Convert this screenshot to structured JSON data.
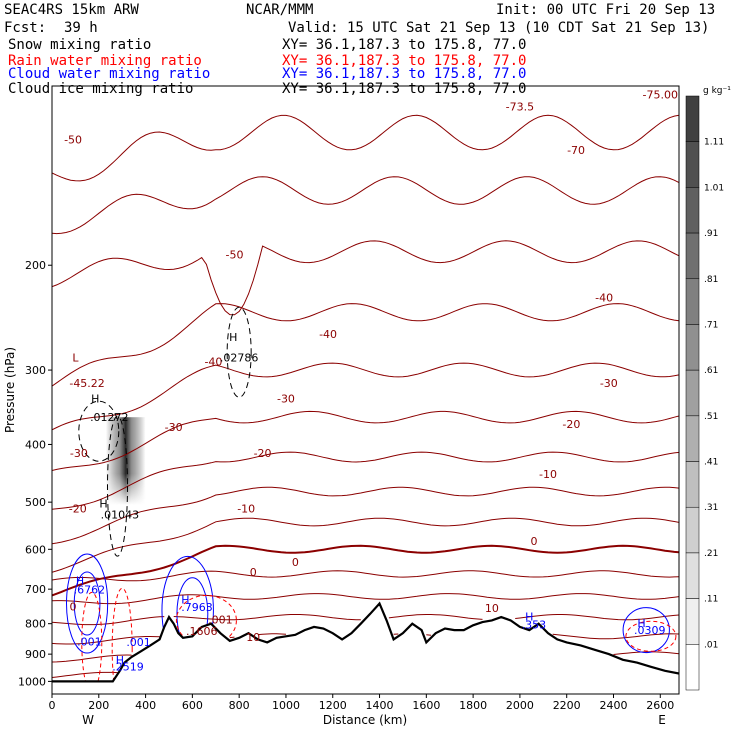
{
  "header": {
    "model": "SEAC4RS 15km ARW",
    "org": "NCAR/MMM",
    "init": "Init: 00 UTC Fri 20 Sep 13",
    "fcst_label": "Fcst:",
    "fcst_value": "39 h",
    "valid": "Valid: 15 UTC Sat 21 Sep 13 (10 CDT Sat 21 Sep 13)"
  },
  "legend": [
    {
      "label": "Snow mixing ratio",
      "xy": "XY=  36.1,187.3 to 175.8, 77.0",
      "color": "#000000"
    },
    {
      "label": "Rain water mixing ratio",
      "xy": "XY=  36.1,187.3 to 175.8, 77.0",
      "color": "#ff0000"
    },
    {
      "label": "Cloud water mixing ratio",
      "xy": "XY=  36.1,187.3 to 175.8, 77.0",
      "color": "#0000ff"
    },
    {
      "label": "Cloud ice mixing ratio",
      "xy": "XY=  36.1,187.3 to 175.8, 77.0",
      "color": "#000000"
    }
  ],
  "chart_data": {
    "type": "cross-section",
    "xlabel": "Distance (km)",
    "ylabel": "Pressure (hPa)",
    "xlim": [
      0,
      2680
    ],
    "ylim_pressure": [
      100,
      1050
    ],
    "xticks": [
      0,
      200,
      400,
      600,
      800,
      1000,
      1200,
      1400,
      1600,
      1800,
      2000,
      2200,
      2400,
      2600
    ],
    "yticks": [
      200,
      300,
      400,
      500,
      600,
      700,
      800,
      900,
      1000
    ],
    "end_labels": {
      "left": "W",
      "right": "E"
    },
    "colorbar": {
      "units": "g kg⁻¹",
      "levels": [
        "1.11",
        "1.01",
        ".91",
        ".81",
        ".71",
        ".61",
        ".51",
        ".41",
        ".31",
        ".21",
        ".11",
        ".01"
      ]
    },
    "terrain": {
      "x": [
        0,
        260,
        290,
        310,
        340,
        380,
        420,
        460,
        480,
        500,
        510,
        520,
        540,
        560,
        600,
        640,
        680,
        720,
        760,
        800,
        840,
        880,
        920,
        960,
        1000,
        1040,
        1080,
        1120,
        1160,
        1200,
        1240,
        1280,
        1320,
        1360,
        1400,
        1430,
        1460,
        1500,
        1540,
        1580,
        1600,
        1640,
        1680,
        1720,
        1760,
        1800,
        1840,
        1880,
        1920,
        1960,
        2000,
        2040,
        2080,
        2120,
        2160,
        2200,
        2260,
        2320,
        2380,
        2440,
        2500,
        2560,
        2620,
        2680
      ],
      "p": [
        1000,
        1000,
        960,
        930,
        910,
        890,
        870,
        850,
        810,
        780,
        790,
        800,
        830,
        845,
        840,
        810,
        800,
        830,
        855,
        845,
        830,
        850,
        860,
        845,
        840,
        835,
        820,
        810,
        815,
        830,
        850,
        830,
        800,
        770,
        740,
        790,
        850,
        830,
        800,
        820,
        860,
        830,
        815,
        820,
        820,
        805,
        795,
        790,
        780,
        790,
        810,
        820,
        800,
        830,
        850,
        860,
        870,
        885,
        900,
        920,
        930,
        945,
        960,
        970
      ]
    },
    "isotherms": {
      "levels": [
        -75,
        -73.5,
        -70,
        -50,
        -40,
        -30,
        -20,
        -10,
        0,
        10
      ],
      "labels": [
        {
          "text": "-70",
          "x": 2240,
          "p": 130,
          "color": "#8b0000"
        },
        {
          "text": "-73.5",
          "x": 2000,
          "p": 110,
          "color": "#8b0000"
        },
        {
          "text": "-75.00",
          "x": 2600,
          "p": 105,
          "color": "#8b0000"
        },
        {
          "text": "-50",
          "x": 90,
          "p": 125,
          "color": "#8b0000"
        },
        {
          "text": "-50",
          "x": 780,
          "p": 195,
          "color": "#8b0000"
        },
        {
          "text": "-40",
          "x": 2360,
          "p": 230,
          "color": "#8b0000"
        },
        {
          "text": "-40",
          "x": 1180,
          "p": 265,
          "color": "#8b0000"
        },
        {
          "text": "-40",
          "x": 690,
          "p": 295,
          "color": "#8b0000"
        },
        {
          "text": "-30",
          "x": 2380,
          "p": 320,
          "color": "#8b0000"
        },
        {
          "text": "-30",
          "x": 1000,
          "p": 340,
          "color": "#8b0000"
        },
        {
          "text": "-30",
          "x": 520,
          "p": 380,
          "color": "#8b0000"
        },
        {
          "text": "-30",
          "x": 115,
          "p": 420,
          "color": "#8b0000"
        },
        {
          "text": "-20",
          "x": 2220,
          "p": 375,
          "color": "#8b0000"
        },
        {
          "text": "-20",
          "x": 900,
          "p": 420,
          "color": "#8b0000"
        },
        {
          "text": "-20",
          "x": 110,
          "p": 520,
          "color": "#8b0000"
        },
        {
          "text": "-10",
          "x": 2120,
          "p": 455,
          "color": "#8b0000"
        },
        {
          "text": "-10",
          "x": 830,
          "p": 520,
          "color": "#8b0000"
        },
        {
          "text": "0",
          "x": 2060,
          "p": 590,
          "color": "#8b0000"
        },
        {
          "text": "0",
          "x": 1040,
          "p": 640,
          "color": "#8b0000"
        },
        {
          "text": "0",
          "x": 860,
          "p": 665,
          "color": "#8b0000"
        },
        {
          "text": "0",
          "x": 90,
          "p": 760,
          "color": "#8b0000"
        },
        {
          "text": "10",
          "x": 1880,
          "p": 765,
          "color": "#8b0000"
        },
        {
          "text": "10",
          "x": 860,
          "p": 855,
          "color": "#8b0000"
        }
      ]
    },
    "extrema": [
      {
        "text": "L",
        "x": 100,
        "p": 290,
        "color": "#8b0000"
      },
      {
        "text": "-45.22",
        "x": 150,
        "p": 320,
        "color": "#8b0000"
      },
      {
        "text": "H",
        "x": 185,
        "p": 340,
        "color": "#000000"
      },
      {
        "text": ".01272",
        "x": 245,
        "p": 365,
        "color": "#000000"
      },
      {
        "text": "H",
        "x": 220,
        "p": 510,
        "color": "#000000"
      },
      {
        "text": ".01043",
        "x": 290,
        "p": 533,
        "color": "#000000"
      },
      {
        "text": "H",
        "x": 775,
        "p": 268,
        "color": "#000000"
      },
      {
        "text": ".02786",
        "x": 800,
        "p": 290,
        "color": "#000000"
      },
      {
        "text": "H",
        "x": 120,
        "p": 688,
        "color": "#0000ff"
      },
      {
        "text": ".6762",
        "x": 160,
        "p": 712,
        "color": "#0000ff"
      },
      {
        "text": "H",
        "x": 570,
        "p": 740,
        "color": "#0000ff"
      },
      {
        "text": ".7963",
        "x": 620,
        "p": 762,
        "color": "#0000ff"
      },
      {
        "text": ".001",
        "x": 160,
        "p": 870,
        "color": "#0000ff"
      },
      {
        "text": ".001",
        "x": 370,
        "p": 872,
        "color": "#0000ff"
      },
      {
        "text": ".001",
        "x": 720,
        "p": 800,
        "color": "#8b0000"
      },
      {
        "text": ".1606",
        "x": 640,
        "p": 835,
        "color": "#8b0000"
      },
      {
        "text": "H",
        "x": 290,
        "p": 935,
        "color": "#0000ff"
      },
      {
        "text": ".2519",
        "x": 325,
        "p": 958,
        "color": "#0000ff"
      },
      {
        "text": "H",
        "x": 2040,
        "p": 790,
        "color": "#0000ff"
      },
      {
        "text": ".353",
        "x": 2060,
        "p": 815,
        "color": "#0000ff"
      },
      {
        "text": "H",
        "x": 2520,
        "p": 810,
        "color": "#0000ff"
      },
      {
        "text": ".0309",
        "x": 2555,
        "p": 833,
        "color": "#0000ff"
      }
    ]
  }
}
